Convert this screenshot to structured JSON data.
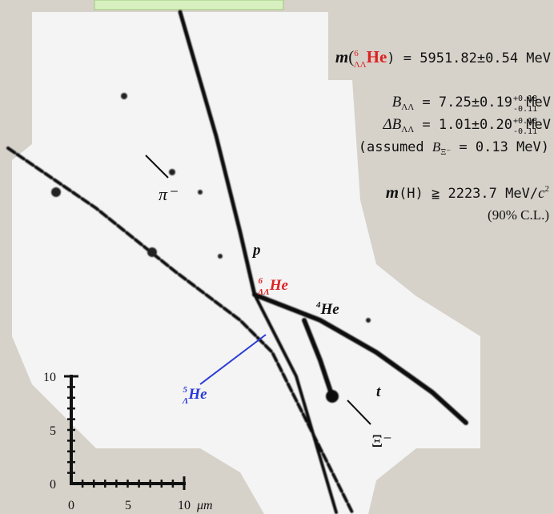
{
  "results": {
    "mass": {
      "m": "m",
      "open": "(",
      "sup": "6",
      "sub": "ΛΛ",
      "nucleus": "He",
      "rest": ") = 5951.82±0.54 MeV"
    },
    "b_ll": {
      "symbol": "B",
      "sub": "ΛΛ",
      "rest": " = 7.25±0.19",
      "sys_up": "+0.18",
      "sys_down": "-0.11",
      "unit": "MeV"
    },
    "delta_b_ll": {
      "symbol": "ΔB",
      "sub": "ΛΛ",
      "rest": " = 1.01±0.20",
      "sys_up": "+0.18",
      "sys_down": "-0.11",
      "unit": "MeV"
    },
    "assumed": {
      "open": "(assumed ",
      "symbol": "B",
      "sub": "Ξ⁻",
      "rest": " = 0.13 MeV)"
    },
    "h_mass": {
      "m": "m",
      "rest": "(H) ≧ 2223.7 MeV/",
      "c": "c",
      "sup": "2"
    },
    "confidence": "(90% C.L.)"
  },
  "labels": {
    "pion": "π⁻",
    "proton": "p",
    "double_hyper": {
      "sup": "6",
      "sub": "ΛΛ",
      "name": "He"
    },
    "helium4": {
      "sup": "4",
      "name": "He"
    },
    "hyper5": {
      "sup": "5",
      "sub": "Λ",
      "name": "He"
    },
    "triton": "t",
    "xi": "Ξ⁻"
  },
  "scale": {
    "y_labels": [
      "10",
      "5",
      "0"
    ],
    "x_labels": [
      "0",
      "5",
      "10"
    ],
    "unit": "μm"
  }
}
